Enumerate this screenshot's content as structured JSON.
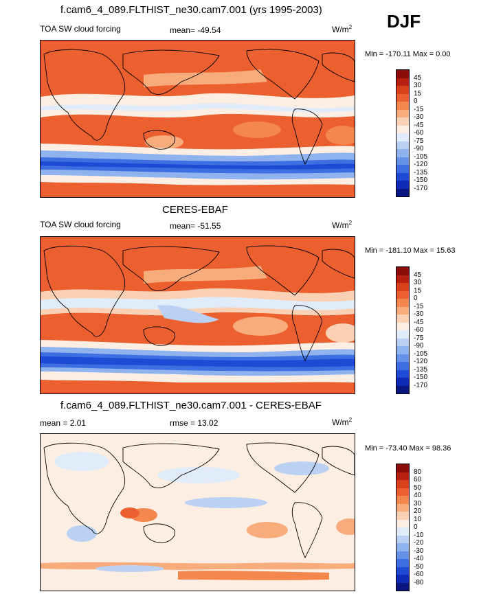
{
  "season": "DJF",
  "panels": [
    {
      "title": "f.cam6_4_089.FLTHIST_ne30.cam7.001 (yrs 1995-2003)",
      "left_label": "TOA SW cloud forcing",
      "center_label": "mean= -49.54",
      "units": "W/m",
      "units_exp": "2",
      "minmax": "Min = -170.11 Max =   0.00",
      "colorbar_key": "abs"
    },
    {
      "title": "CERES-EBAF",
      "left_label": "TOA SW cloud forcing",
      "center_label": "mean= -51.55",
      "units": "W/m",
      "units_exp": "2",
      "minmax": "Min = -181.10 Max =  15.63",
      "colorbar_key": "abs"
    },
    {
      "title": "f.cam6_4_089.FLTHIST_ne30.cam7.001 - CERES-EBAF",
      "left_label": "mean =   2.01",
      "center_label": "rmse =  13.02",
      "units": "W/m",
      "units_exp": "2",
      "minmax": "Min = -73.40 Max =  98.36",
      "colorbar_key": "diff"
    }
  ],
  "colorbars": {
    "abs": {
      "labels": [
        "45",
        "30",
        "15",
        "0",
        "-15",
        "-30",
        "-45",
        "-60",
        "-75",
        "-90",
        "-105",
        "-120",
        "-135",
        "-150",
        "-170"
      ],
      "colors": [
        "#8b0d0a",
        "#b5200f",
        "#d9401c",
        "#ec5f2e",
        "#f4874e",
        "#f8ac7c",
        "#fbd1b5",
        "#fdeee4",
        "#e1ecfa",
        "#bad1f4",
        "#8fb3ee",
        "#6591e9",
        "#3d6ee2",
        "#1f4bd4",
        "#0f2ab5",
        "#0a1680"
      ]
    },
    "diff": {
      "labels": [
        "80",
        "60",
        "50",
        "40",
        "30",
        "20",
        "10",
        "0",
        "-10",
        "-20",
        "-30",
        "-40",
        "-50",
        "-60",
        "-80"
      ],
      "colors": [
        "#8b0d0a",
        "#b5200f",
        "#d9401c",
        "#ec5f2e",
        "#f4874e",
        "#f8ac7c",
        "#fbd1b5",
        "#fdeee4",
        "#e1ecfa",
        "#bad1f4",
        "#8fb3ee",
        "#6591e9",
        "#3d6ee2",
        "#1f4bd4",
        "#0f2ab5",
        "#0a1680"
      ]
    }
  },
  "chart_data": [
    {
      "type": "heatmap",
      "title": "f.cam6_4_089.FLTHIST_ne30.cam7.001 (yrs 1995-2003)",
      "variable": "TOA SW cloud forcing",
      "mean": -49.54,
      "min": -170.11,
      "max": 0.0,
      "units": "W/m2",
      "levels": [
        -170,
        -150,
        -135,
        -120,
        -105,
        -90,
        -75,
        -60,
        -45,
        -30,
        -15,
        0,
        15,
        30,
        45
      ]
    },
    {
      "type": "heatmap",
      "title": "CERES-EBAF",
      "variable": "TOA SW cloud forcing",
      "mean": -51.55,
      "min": -181.1,
      "max": 15.63,
      "units": "W/m2",
      "levels": [
        -170,
        -150,
        -135,
        -120,
        -105,
        -90,
        -75,
        -60,
        -45,
        -30,
        -15,
        0,
        15,
        30,
        45
      ]
    },
    {
      "type": "heatmap",
      "title": "f.cam6_4_089.FLTHIST_ne30.cam7.001 - CERES-EBAF",
      "mean": 2.01,
      "rmse": 13.02,
      "min": -73.4,
      "max": 98.36,
      "units": "W/m2",
      "levels": [
        -80,
        -60,
        -50,
        -40,
        -30,
        -20,
        -10,
        0,
        10,
        20,
        30,
        40,
        50,
        60,
        80
      ]
    }
  ]
}
